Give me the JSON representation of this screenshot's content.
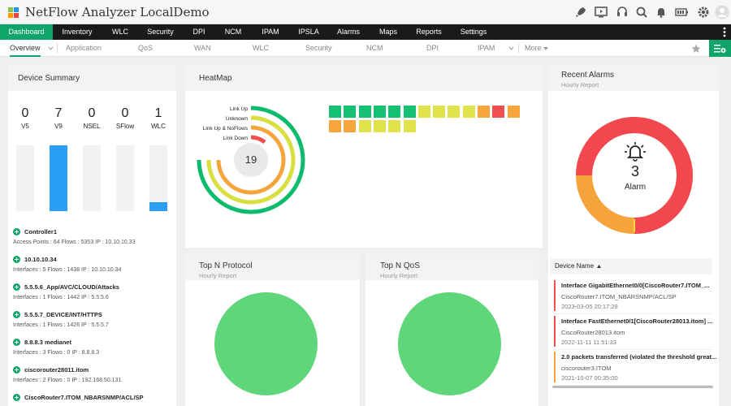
{
  "app": {
    "title": "NetFlow Analyzer LocalDemo"
  },
  "toolbar_icons": [
    "rocket-icon",
    "monitor-icon",
    "headset-icon",
    "search-icon",
    "bell-icon",
    "battery-icon",
    "gear-icon",
    "user-icon"
  ],
  "nav": {
    "items": [
      "Dashboard",
      "Inventory",
      "WLC",
      "Security",
      "DPI",
      "NCM",
      "IPAM",
      "IPSLA",
      "Alarms",
      "Maps",
      "Reports",
      "Settings"
    ],
    "active": "Dashboard"
  },
  "subnav": {
    "items": [
      "Overview",
      "Application",
      "QoS",
      "WAN",
      "WLC",
      "Security",
      "NCM",
      "DPI",
      "IPAM",
      "More"
    ],
    "active": "Overview"
  },
  "device_summary": {
    "title": "Device Summary",
    "counts": [
      {
        "label": "V5",
        "value": "0",
        "fill": 0
      },
      {
        "label": "V9",
        "value": "7",
        "fill": 1.0
      },
      {
        "label": "NSEL",
        "value": "0",
        "fill": 0
      },
      {
        "label": "SFlow",
        "value": "0",
        "fill": 0
      },
      {
        "label": "WLC",
        "value": "1",
        "fill": 0.14
      }
    ],
    "devices": [
      {
        "name": "Controller1",
        "meta": "Access Points : 64   Flows : 5353   IP : 10.10.10.33"
      },
      {
        "name": "10.10.10.34",
        "meta": "Interfaces : 5   Flows : 1438   IP : 10.10.10.34"
      },
      {
        "name": "5.5.5.6_App/AVC/CLOUD/Attacks",
        "meta": "Interfaces : 1   Flows : 1442   IP : 5.5.5.6"
      },
      {
        "name": "5.5.5.7_DEVICE/INT/HTTPS",
        "meta": "Interfaces : 1   Flows : 1426   IP : 5.5.5.7"
      },
      {
        "name": "8.8.8.3 medianet",
        "meta": "Interfaces : 3   Flows : 0   IP : 8.8.8.3"
      },
      {
        "name": "ciscorouter28011.itom",
        "meta": "Interfaces : 2   Flows : 0   IP : 192.168.50.131"
      },
      {
        "name": "CiscoRouter7.ITOM_NBARSNMP/ACL/SP",
        "meta": ""
      }
    ]
  },
  "heatmap": {
    "title": "HeatMap",
    "center_value": "19",
    "legend": [
      {
        "label": "Link Up",
        "color": "#0dbb6d"
      },
      {
        "label": "Unknown",
        "color": "#d9df3e"
      },
      {
        "label": "Link Up & NoFlows",
        "color": "#f5a43c"
      },
      {
        "label": "Link Down",
        "color": "#f05050"
      }
    ],
    "cells_row1": [
      "#16c072",
      "#16c072",
      "#16c072",
      "#16c072",
      "#16c072",
      "#16c072",
      "#e0e34b",
      "#e0e34b",
      "#e0e34b",
      "#e0e34b",
      "#f7a63d",
      "#f25050",
      "#f7a63d"
    ],
    "cells_row2": [
      "#f7a63d",
      "#f7a63d",
      "#e0e34b",
      "#e0e34b",
      "#e0e34b",
      "#e0e34b"
    ]
  },
  "recent_alarms": {
    "title": "Recent Alarms",
    "subtitle": "Hourly Report",
    "count": "3",
    "label": "Alarm",
    "column": "Device Name",
    "items": [
      {
        "title": "Interface GigabitEthernet0/0[CiscoRouter7.ITOM_...",
        "device": "CiscoRouter7.ITOM_NBARSNMP/ACL/SP",
        "time": "2023-03-05 20:17:29",
        "color": "#f05050"
      },
      {
        "title": "Interface FastEthernet0/1[CiscoRouter28013.itom] ...",
        "device": "CiscoRouter28013.itom",
        "time": "2022-11-11 11:51:33",
        "color": "#f05050"
      },
      {
        "title": "2.0 packets transferred (violated the threshold great...",
        "device": "ciscorouter3.ITOM",
        "time": "2021-10-07 00:35:00",
        "color": "#f5a43c"
      }
    ]
  },
  "top_protocol": {
    "title": "Top N Protocol",
    "subtitle": "Hourly Report",
    "color": "#5fd67a"
  },
  "top_qos": {
    "title": "Top N QoS",
    "subtitle": "Hourly Report",
    "color": "#5fd67a"
  }
}
